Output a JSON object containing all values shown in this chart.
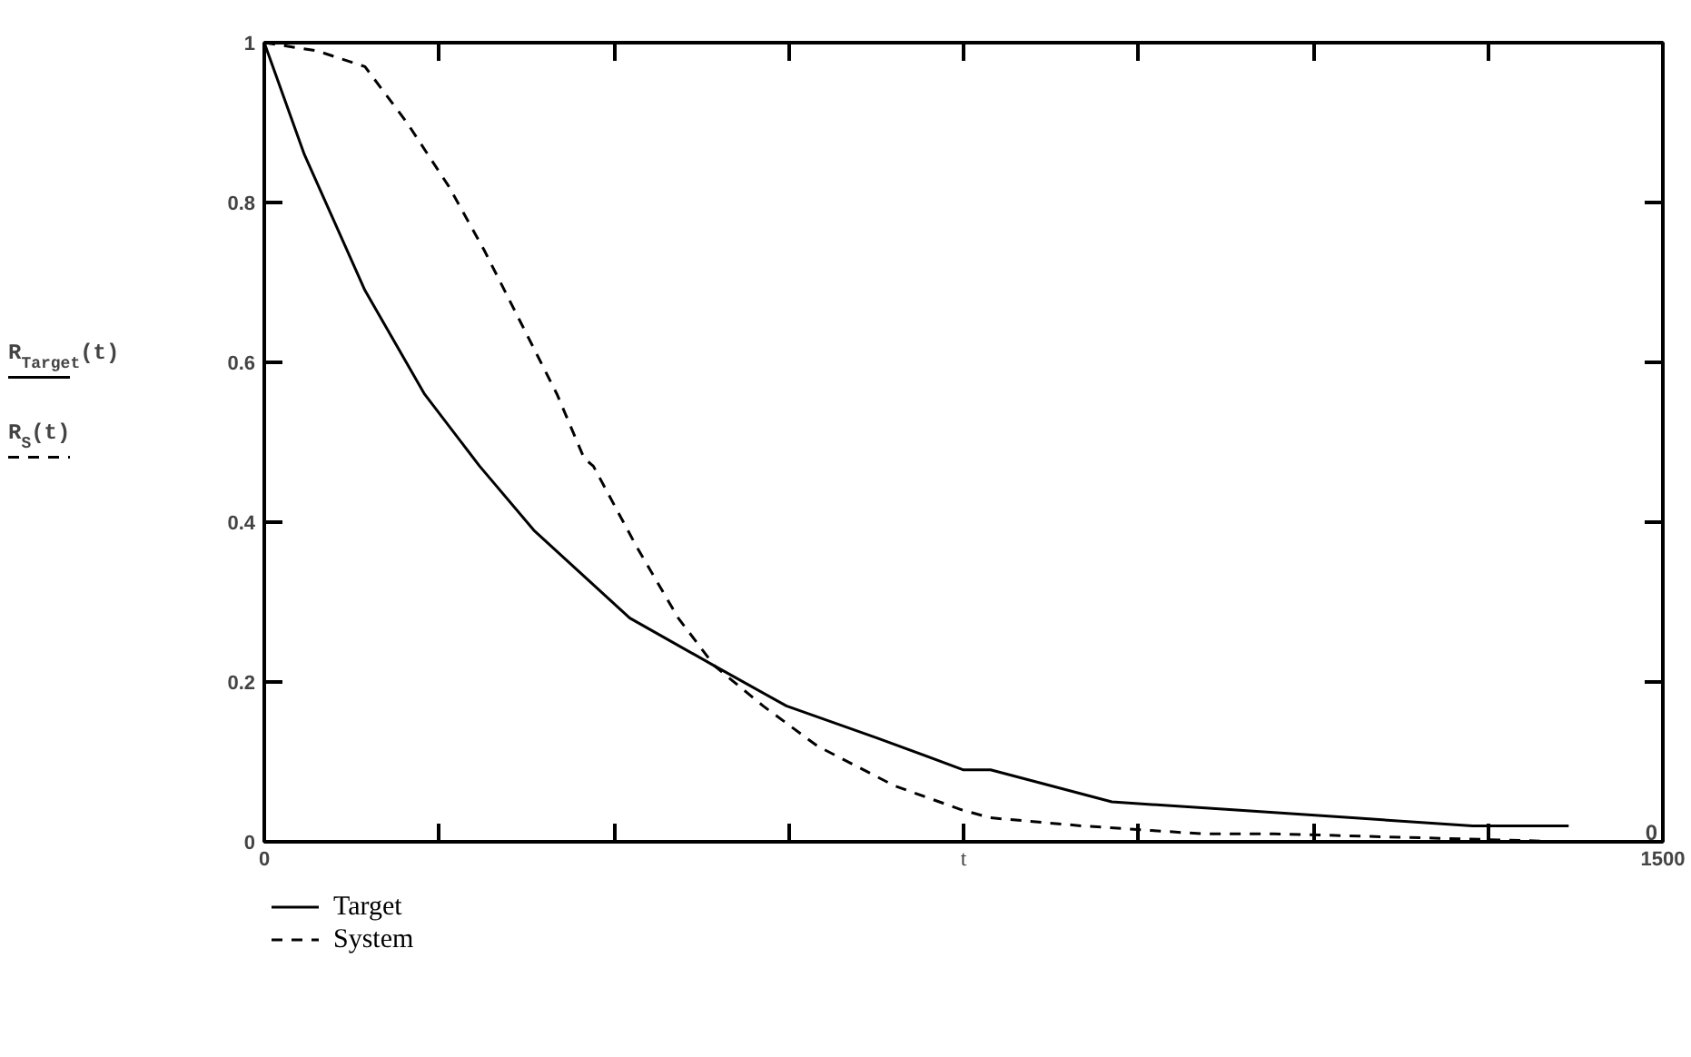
{
  "chart_data": {
    "type": "line",
    "xlabel": "t",
    "ylabel": "R$_{Target}$(t)\nR$_{S}$(t)",
    "xlim": [
      0,
      1500
    ],
    "ylim": [
      0,
      1
    ],
    "xticks": [
      0,
      {
        "value": 187.5,
        "label": null
      },
      {
        "value": 375,
        "label": null
      },
      {
        "value": 562.5,
        "label": null
      },
      {
        "value": 750,
        "label": null
      },
      {
        "value": 937.5,
        "label": null
      },
      {
        "value": 1125,
        "label": null
      },
      {
        "value": 1312.5,
        "label": null
      },
      1500
    ],
    "yticks": [
      0,
      0.2,
      0.4,
      0.6,
      0.8,
      1
    ],
    "legend": "bottom left",
    "grid": false,
    "annotations": [
      "0"
    ],
    "series": [
      {
        "name": "Target",
        "color": "#000000",
        "line_style": "solid",
        "x": [
          0,
          43,
          108,
          172,
          231,
          289,
          392,
          483,
          560,
          657,
          750,
          779,
          909,
          1039,
          1167,
          1296,
          1399
        ],
        "values": [
          1,
          0.86,
          0.69,
          0.56,
          0.47,
          0.39,
          0.28,
          0.22,
          0.17,
          0.13,
          0.09,
          0.09,
          0.05,
          0.04,
          0.03,
          0.02,
          0.02
        ]
      },
      {
        "name": "System",
        "color": "#000000",
        "line_style": "dashed",
        "x": [
          0,
          56,
          108,
          153,
          198,
          236,
          275,
          314,
          343,
          353,
          399,
          444,
          483,
          535,
          593,
          676,
          748,
          779,
          876,
          1006,
          1083,
          1399
        ],
        "values": [
          1,
          0.99,
          0.97,
          0.9,
          0.82,
          0.74,
          0.65,
          0.56,
          0.48,
          0.47,
          0.37,
          0.28,
          0.22,
          0.17,
          0.12,
          0.07,
          0.04,
          0.03,
          0.02,
          0.01,
          0.01,
          0
        ]
      }
    ]
  }
}
